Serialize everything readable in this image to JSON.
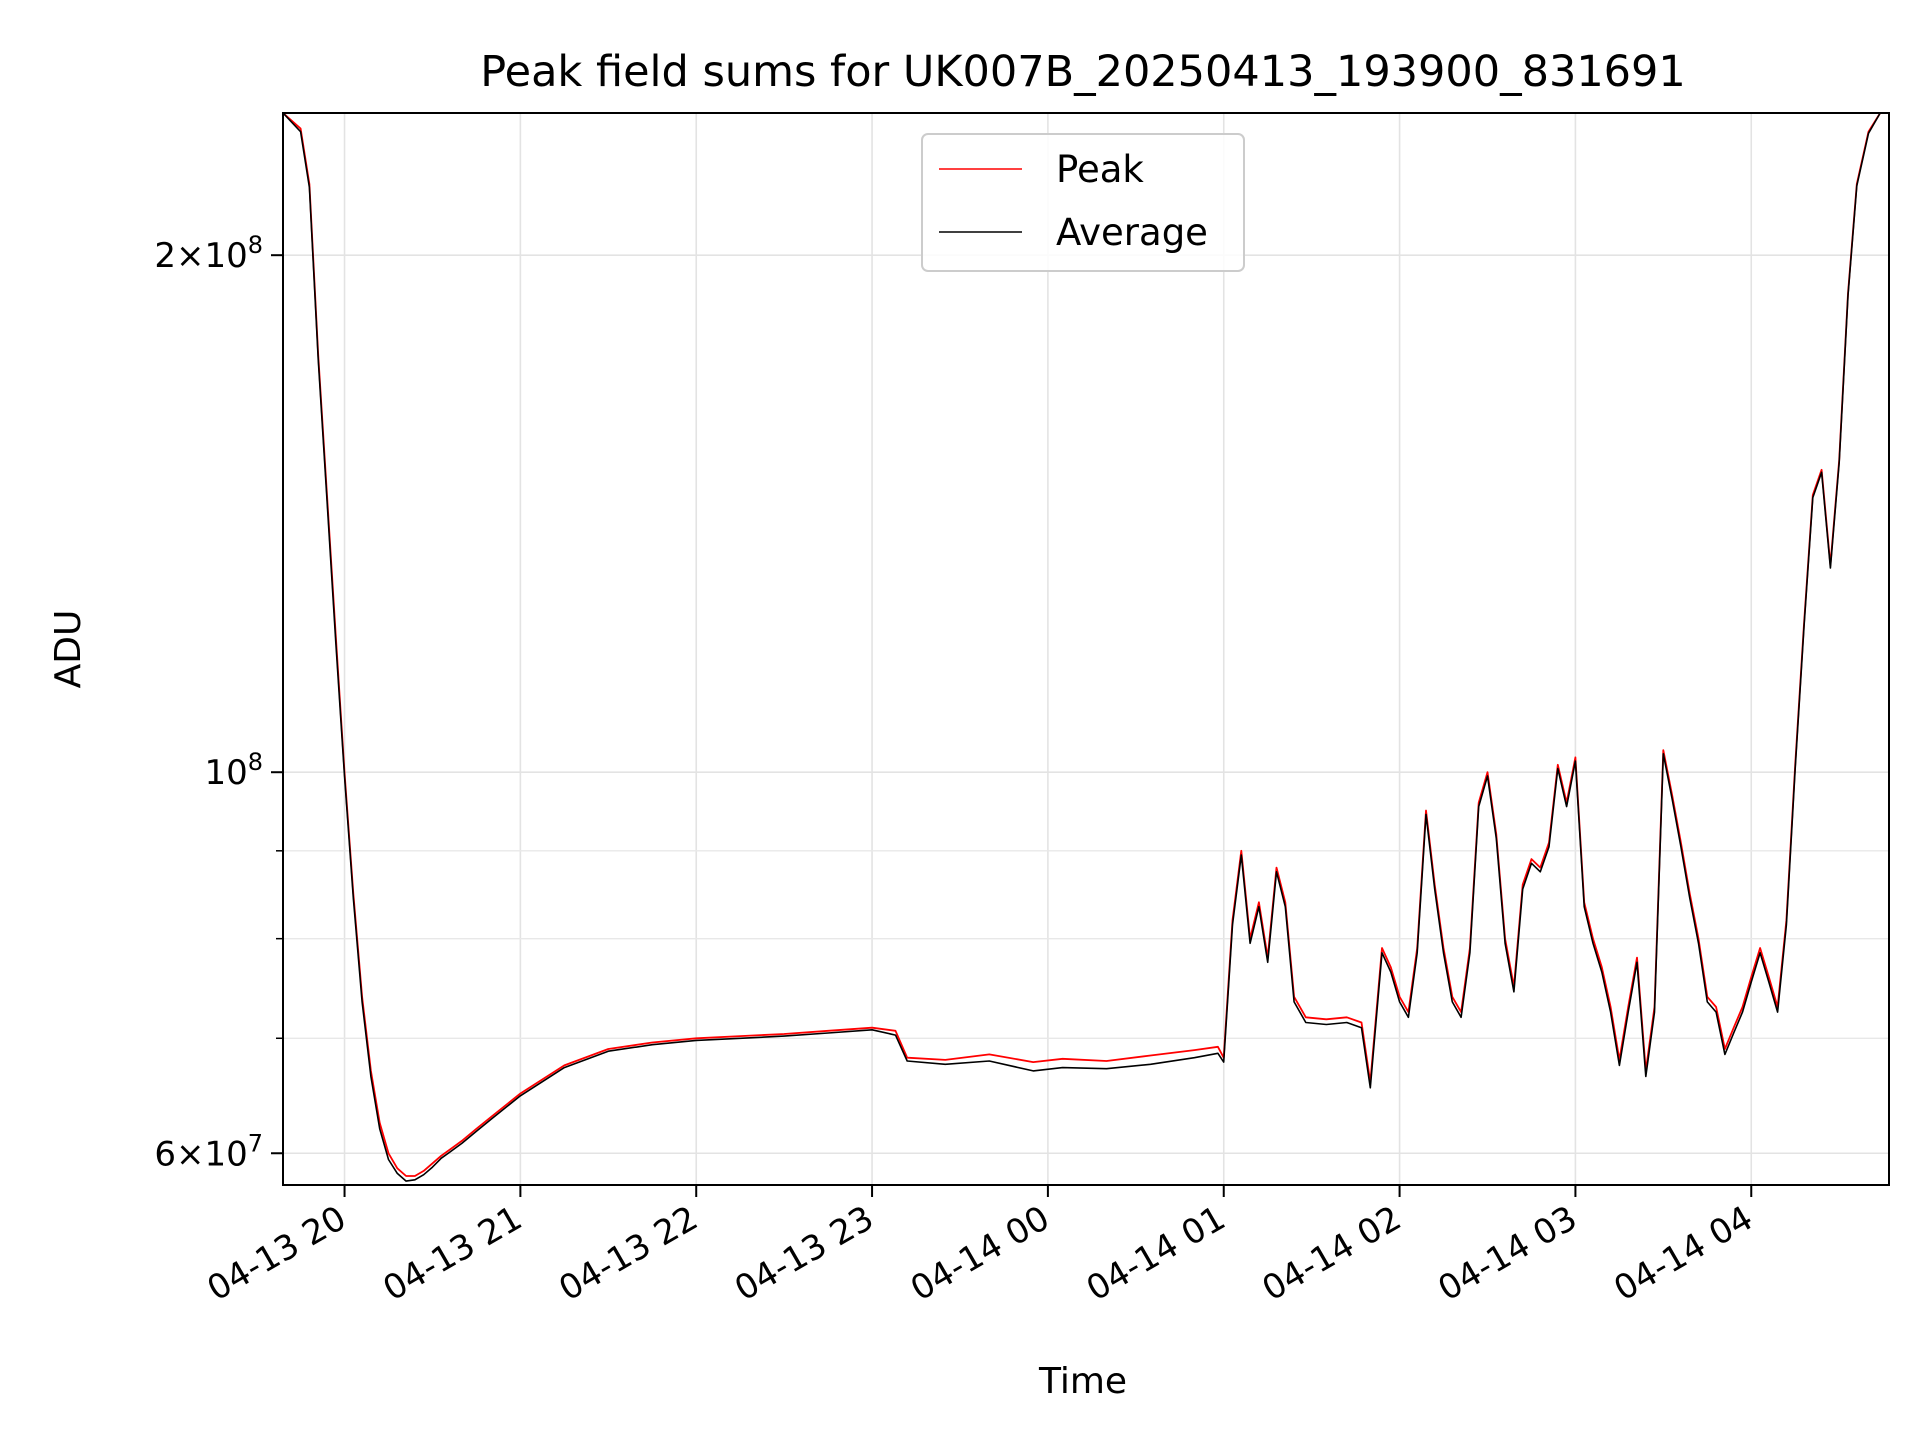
{
  "chart_data": {
    "type": "line",
    "title": "Peak field sums for UK007B_20250413_193900_831691",
    "xlabel": "Time",
    "ylabel": "ADU",
    "yscale": "log",
    "ylim": [
      57500000,
      242000000
    ],
    "xlim": [
      "2025-04-13 19:39",
      "2025-04-14 04:47"
    ],
    "grid": true,
    "legend_position": "upper center",
    "x_ticks": [
      {
        "value": "2025-04-13 20:00",
        "label": "04-13 20"
      },
      {
        "value": "2025-04-13 21:00",
        "label": "04-13 21"
      },
      {
        "value": "2025-04-13 22:00",
        "label": "04-13 22"
      },
      {
        "value": "2025-04-13 23:00",
        "label": "04-13 23"
      },
      {
        "value": "2025-04-14 00:00",
        "label": "04-14 00"
      },
      {
        "value": "2025-04-14 01:00",
        "label": "04-14 01"
      },
      {
        "value": "2025-04-14 02:00",
        "label": "04-14 02"
      },
      {
        "value": "2025-04-14 03:00",
        "label": "04-14 03"
      },
      {
        "value": "2025-04-14 04:00",
        "label": "04-14 04"
      }
    ],
    "y_ticks": [
      {
        "value": 60000000,
        "mantissa": "6",
        "exponent": "7"
      },
      {
        "value": 100000000,
        "mantissa": "",
        "exponent": "8"
      },
      {
        "value": 200000000,
        "mantissa": "2",
        "exponent": "8"
      }
    ],
    "y_minor_ticks": [
      70000000,
      80000000,
      90000000
    ],
    "series": [
      {
        "name": "Peak",
        "color": "#ff0000",
        "x": [
          "2025-04-13 19:39",
          "2025-04-13 19:45",
          "2025-04-13 19:48",
          "2025-04-13 19:51",
          "2025-04-13 19:54",
          "2025-04-13 19:57",
          "2025-04-13 20:00",
          "2025-04-13 20:03",
          "2025-04-13 20:06",
          "2025-04-13 20:09",
          "2025-04-13 20:12",
          "2025-04-13 20:15",
          "2025-04-13 20:18",
          "2025-04-13 20:21",
          "2025-04-13 20:24",
          "2025-04-13 20:27",
          "2025-04-13 20:30",
          "2025-04-13 20:33",
          "2025-04-13 20:36",
          "2025-04-13 20:40",
          "2025-04-13 20:45",
          "2025-04-13 20:50",
          "2025-04-13 21:00",
          "2025-04-13 21:15",
          "2025-04-13 21:30",
          "2025-04-13 21:45",
          "2025-04-13 22:00",
          "2025-04-13 22:15",
          "2025-04-13 22:30",
          "2025-04-13 22:45",
          "2025-04-13 23:00",
          "2025-04-13 23:08",
          "2025-04-13 23:12",
          "2025-04-13 23:25",
          "2025-04-13 23:40",
          "2025-04-13 23:55",
          "2025-04-14 00:05",
          "2025-04-14 00:20",
          "2025-04-14 00:35",
          "2025-04-14 00:50",
          "2025-04-14 00:58",
          "2025-04-14 01:00",
          "2025-04-14 01:03",
          "2025-04-14 01:06",
          "2025-04-14 01:09",
          "2025-04-14 01:12",
          "2025-04-14 01:15",
          "2025-04-14 01:18",
          "2025-04-14 01:21",
          "2025-04-14 01:24",
          "2025-04-14 01:28",
          "2025-04-14 01:35",
          "2025-04-14 01:42",
          "2025-04-14 01:47",
          "2025-04-14 01:50",
          "2025-04-14 01:54",
          "2025-04-14 01:57",
          "2025-04-14 02:00",
          "2025-04-14 02:03",
          "2025-04-14 02:06",
          "2025-04-14 02:09",
          "2025-04-14 02:12",
          "2025-04-14 02:15",
          "2025-04-14 02:18",
          "2025-04-14 02:21",
          "2025-04-14 02:24",
          "2025-04-14 02:27",
          "2025-04-14 02:30",
          "2025-04-14 02:33",
          "2025-04-14 02:36",
          "2025-04-14 02:39",
          "2025-04-14 02:42",
          "2025-04-14 02:45",
          "2025-04-14 02:48",
          "2025-04-14 02:51",
          "2025-04-14 02:54",
          "2025-04-14 02:57",
          "2025-04-14 03:00",
          "2025-04-14 03:03",
          "2025-04-14 03:06",
          "2025-04-14 03:09",
          "2025-04-14 03:12",
          "2025-04-14 03:15",
          "2025-04-14 03:18",
          "2025-04-14 03:21",
          "2025-04-14 03:24",
          "2025-04-14 03:27",
          "2025-04-14 03:30",
          "2025-04-14 03:33",
          "2025-04-14 03:36",
          "2025-04-14 03:39",
          "2025-04-14 03:42",
          "2025-04-14 03:45",
          "2025-04-14 03:48",
          "2025-04-14 03:51",
          "2025-04-14 03:54",
          "2025-04-14 03:57",
          "2025-04-14 04:00",
          "2025-04-14 04:03",
          "2025-04-14 04:06",
          "2025-04-14 04:09",
          "2025-04-14 04:12",
          "2025-04-14 04:15",
          "2025-04-14 04:18",
          "2025-04-14 04:21",
          "2025-04-14 04:24",
          "2025-04-14 04:27",
          "2025-04-14 04:30",
          "2025-04-14 04:33",
          "2025-04-14 04:36",
          "2025-04-14 04:40",
          "2025-04-14 04:44",
          "2025-04-14 04:47"
        ],
        "y": [
          242000000,
          237000000,
          220000000,
          175000000,
          145000000,
          120000000,
          100000000,
          85000000,
          74000000,
          67000000,
          62500000,
          60000000,
          58800000,
          58200000,
          58200000,
          58600000,
          59200000,
          59800000,
          60300000,
          61000000,
          62000000,
          63000000,
          65000000,
          67500000,
          69000000,
          69600000,
          70000000,
          70200000,
          70400000,
          70700000,
          71000000,
          70700000,
          68200000,
          68000000,
          68500000,
          67800000,
          68100000,
          67900000,
          68400000,
          68900000,
          69200000,
          68200000,
          82000000,
          90000000,
          80000000,
          84000000,
          78000000,
          88000000,
          84000000,
          74000000,
          72000000,
          71800000,
          72000000,
          71500000,
          66000000,
          79000000,
          77000000,
          74000000,
          72500000,
          79000000,
          95000000,
          86000000,
          79000000,
          74000000,
          72500000,
          79000000,
          96000000,
          100000000,
          92000000,
          80000000,
          75000000,
          86000000,
          89000000,
          88000000,
          91000000,
          101000000,
          96000000,
          102000000,
          84000000,
          80000000,
          77000000,
          73000000,
          68000000,
          73000000,
          78000000,
          67000000,
          73000000,
          103000000,
          97000000,
          91000000,
          85000000,
          80000000,
          74000000,
          73000000,
          69000000,
          71000000,
          73000000,
          76000000,
          79000000,
          76000000,
          73000000,
          82000000,
          101000000,
          122000000,
          145000000,
          150000000,
          132000000,
          152000000,
          190000000,
          220000000,
          236000000,
          242000000,
          242000000
        ]
      },
      {
        "name": "Average",
        "color": "#000000",
        "x": [
          "2025-04-13 19:39",
          "2025-04-13 19:45",
          "2025-04-13 19:48",
          "2025-04-13 19:51",
          "2025-04-13 19:54",
          "2025-04-13 19:57",
          "2025-04-13 20:00",
          "2025-04-13 20:03",
          "2025-04-13 20:06",
          "2025-04-13 20:09",
          "2025-04-13 20:12",
          "2025-04-13 20:15",
          "2025-04-13 20:18",
          "2025-04-13 20:21",
          "2025-04-13 20:24",
          "2025-04-13 20:27",
          "2025-04-13 20:30",
          "2025-04-13 20:33",
          "2025-04-13 20:36",
          "2025-04-13 20:40",
          "2025-04-13 20:45",
          "2025-04-13 20:50",
          "2025-04-13 21:00",
          "2025-04-13 21:15",
          "2025-04-13 21:30",
          "2025-04-13 21:45",
          "2025-04-13 22:00",
          "2025-04-13 22:15",
          "2025-04-13 22:30",
          "2025-04-13 22:45",
          "2025-04-13 23:00",
          "2025-04-13 23:08",
          "2025-04-13 23:12",
          "2025-04-13 23:25",
          "2025-04-13 23:40",
          "2025-04-13 23:55",
          "2025-04-14 00:05",
          "2025-04-14 00:20",
          "2025-04-14 00:35",
          "2025-04-14 00:50",
          "2025-04-14 00:58",
          "2025-04-14 01:00",
          "2025-04-14 01:03",
          "2025-04-14 01:06",
          "2025-04-14 01:09",
          "2025-04-14 01:12",
          "2025-04-14 01:15",
          "2025-04-14 01:18",
          "2025-04-14 01:21",
          "2025-04-14 01:24",
          "2025-04-14 01:28",
          "2025-04-14 01:35",
          "2025-04-14 01:42",
          "2025-04-14 01:47",
          "2025-04-14 01:50",
          "2025-04-14 01:54",
          "2025-04-14 01:57",
          "2025-04-14 02:00",
          "2025-04-14 02:03",
          "2025-04-14 02:06",
          "2025-04-14 02:09",
          "2025-04-14 02:12",
          "2025-04-14 02:15",
          "2025-04-14 02:18",
          "2025-04-14 02:21",
          "2025-04-14 02:24",
          "2025-04-14 02:27",
          "2025-04-14 02:30",
          "2025-04-14 02:33",
          "2025-04-14 02:36",
          "2025-04-14 02:39",
          "2025-04-14 02:42",
          "2025-04-14 02:45",
          "2025-04-14 02:48",
          "2025-04-14 02:51",
          "2025-04-14 02:54",
          "2025-04-14 02:57",
          "2025-04-14 03:00",
          "2025-04-14 03:03",
          "2025-04-14 03:06",
          "2025-04-14 03:09",
          "2025-04-14 03:12",
          "2025-04-14 03:15",
          "2025-04-14 03:18",
          "2025-04-14 03:21",
          "2025-04-14 03:24",
          "2025-04-14 03:27",
          "2025-04-14 03:30",
          "2025-04-14 03:33",
          "2025-04-14 03:36",
          "2025-04-14 03:39",
          "2025-04-14 03:42",
          "2025-04-14 03:45",
          "2025-04-14 03:48",
          "2025-04-14 03:51",
          "2025-04-14 03:54",
          "2025-04-14 03:57",
          "2025-04-14 04:00",
          "2025-04-14 04:03",
          "2025-04-14 04:06",
          "2025-04-14 04:09",
          "2025-04-14 04:12",
          "2025-04-14 04:15",
          "2025-04-14 04:18",
          "2025-04-14 04:21",
          "2025-04-14 04:24",
          "2025-04-14 04:27",
          "2025-04-14 04:30",
          "2025-04-14 04:33",
          "2025-04-14 04:36",
          "2025-04-14 04:40",
          "2025-04-14 04:44",
          "2025-04-14 04:47"
        ],
        "y": [
          242000000,
          236000000,
          219000000,
          174000000,
          144000000,
          119000000,
          99500000,
          84500000,
          73500000,
          66500000,
          62000000,
          59500000,
          58400000,
          57800000,
          57900000,
          58300000,
          58900000,
          59600000,
          60100000,
          60800000,
          61800000,
          62800000,
          64800000,
          67300000,
          68800000,
          69400000,
          69800000,
          70000000,
          70200000,
          70500000,
          70800000,
          70300000,
          67900000,
          67600000,
          67900000,
          67000000,
          67300000,
          67200000,
          67600000,
          68200000,
          68600000,
          67800000,
          81500000,
          89500000,
          79500000,
          83500000,
          77500000,
          87500000,
          83500000,
          73500000,
          71500000,
          71300000,
          71500000,
          71000000,
          65500000,
          78500000,
          76500000,
          73500000,
          72000000,
          78500000,
          94500000,
          85500000,
          78500000,
          73500000,
          72000000,
          78500000,
          95500000,
          99500000,
          91500000,
          79500000,
          74500000,
          85500000,
          88500000,
          87500000,
          90500000,
          100500000,
          95500000,
          101500000,
          83500000,
          79500000,
          76500000,
          72500000,
          67500000,
          72500000,
          77500000,
          66500000,
          72500000,
          102500000,
          96500000,
          90500000,
          84500000,
          79500000,
          73500000,
          72500000,
          68500000,
          70500000,
          72500000,
          75500000,
          78500000,
          75500000,
          72500000,
          81500000,
          100500000,
          121500000,
          144500000,
          149500000,
          131500000,
          151500000,
          189500000,
          219500000,
          235500000,
          242000000,
          242000000
        ]
      }
    ]
  }
}
